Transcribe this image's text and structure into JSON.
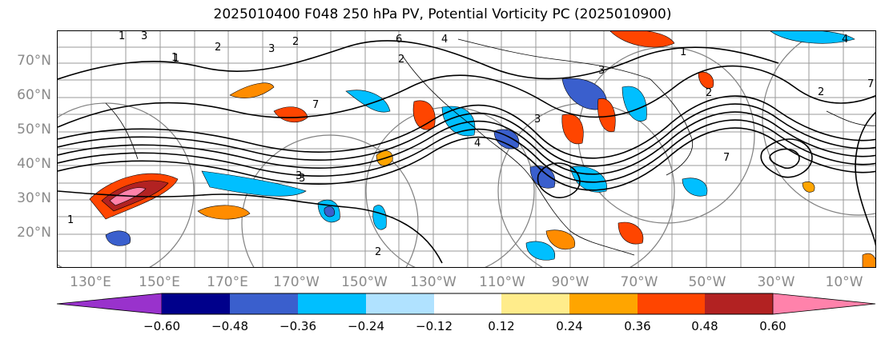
{
  "title": "2025010400 F048 250 hPa PV, Potential Vorticity PC (2025010900)",
  "lat_labels": [
    "70°N",
    "60°N",
    "50°N",
    "40°N",
    "30°N",
    "20°N"
  ],
  "lon_labels": [
    "130°E",
    "150°E",
    "170°E",
    "170°W",
    "150°W",
    "130°W",
    "110°W",
    "90°W",
    "70°W",
    "50°W",
    "30°W",
    "10°W"
  ],
  "colorbar": {
    "colors": [
      "#9932cc",
      "#00008b",
      "#3a5fcd",
      "#00bfff",
      "#b0e2ff",
      "#ffffff",
      "#ffec8b",
      "#ffa500",
      "#ff4500",
      "#b22222",
      "#ff82ab"
    ],
    "tick_labels": [
      "−0.60",
      "−0.48",
      "−0.36",
      "−0.24",
      "−0.12",
      "0.12",
      "0.24",
      "0.36",
      "0.48",
      "0.60"
    ]
  },
  "contour_labels": [
    "1",
    "3",
    "2",
    "1",
    "2",
    "6",
    "2",
    "7",
    "3",
    "4",
    "2",
    "1",
    "2",
    "7",
    "3",
    "3",
    "4",
    "1",
    "2",
    "4",
    "7",
    "1",
    "3",
    "3"
  ]
}
